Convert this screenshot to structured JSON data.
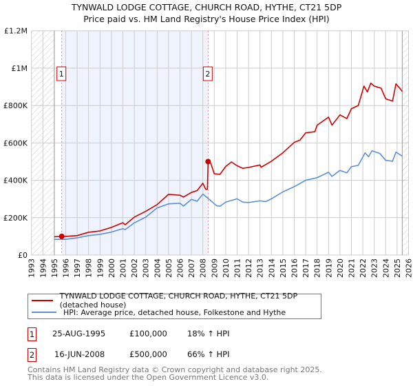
{
  "title": "TYNWALD LODGE COTTAGE, CHURCH ROAD, HYTHE, CT21 5DP",
  "subtitle": "Price paid vs. HM Land Registry's House Price Index (HPI)",
  "chart_data": {
    "type": "line",
    "xlim": [
      1993,
      2026
    ],
    "ylim": [
      0,
      1200000
    ],
    "yticks": [
      {
        "v": 0,
        "label": "£0"
      },
      {
        "v": 200000,
        "label": "£200K"
      },
      {
        "v": 400000,
        "label": "£400K"
      },
      {
        "v": 600000,
        "label": "£600K"
      },
      {
        "v": 800000,
        "label": "£800K"
      },
      {
        "v": 1000000,
        "label": "£1M"
      },
      {
        "v": 1200000,
        "label": "£1.2M"
      }
    ],
    "xticks": [
      "1993",
      "1994",
      "1995",
      "1996",
      "1997",
      "1998",
      "1999",
      "2000",
      "2001",
      "2002",
      "2003",
      "2004",
      "2005",
      "2006",
      "2007",
      "2008",
      "2009",
      "2010",
      "2011",
      "2012",
      "2013",
      "2014",
      "2015",
      "2016",
      "2017",
      "2018",
      "2019",
      "2020",
      "2021",
      "2022",
      "2023",
      "2024",
      "2025",
      "2026"
    ],
    "data_range": [
      1995,
      2025.45
    ],
    "grid": true,
    "series": [
      {
        "name": "TYNWALD LODGE COTTAGE, CHURCH ROAD, HYTHE, CT21 5DP (detached house)",
        "color": "#cc0000",
        "x": [
          1995.0,
          1995.65,
          1996,
          1997,
          1998,
          1999,
          2000,
          2001,
          2001.2,
          2002,
          2003,
          2004,
          2005,
          2006,
          2006.3,
          2007,
          2007.5,
          2008,
          2008.25,
          2008.4,
          2008.46,
          2008.7,
          2009,
          2009.5,
          2010,
          2010.5,
          2011,
          2011.5,
          2012,
          2013,
          2013.1,
          2014,
          2015,
          2016,
          2016.5,
          2017,
          2017.8,
          2018,
          2019,
          2019.3,
          2020,
          2020.6,
          2021,
          2021.6,
          2022.1,
          2022.4,
          2022.7,
          2023,
          2023.6,
          2024,
          2024.6,
          2024.9,
          2025.3,
          2025.45
        ],
        "y": [
          98000,
          100000,
          100000,
          104000,
          122000,
          129000,
          148000,
          173000,
          162000,
          203000,
          234000,
          270000,
          325000,
          320000,
          310000,
          335000,
          345000,
          384000,
          352000,
          352000,
          500000,
          490000,
          435000,
          432000,
          474000,
          498000,
          478000,
          464000,
          469000,
          482000,
          470000,
          502000,
          547000,
          603000,
          615000,
          654000,
          660000,
          695000,
          738000,
          695000,
          750000,
          730000,
          783000,
          800000,
          904000,
          873000,
          920000,
          904000,
          893000,
          836000,
          824000,
          916000,
          888000,
          875000
        ]
      },
      {
        "name": "HPI: Average price, detached house, Folkestone and Hythe",
        "color": "#5b8fd4",
        "x": [
          1995.0,
          1996,
          1997,
          1998,
          1999,
          2000,
          2001,
          2001.2,
          2002,
          2003,
          2004,
          2005,
          2006,
          2006.3,
          2007,
          2007.5,
          2008,
          2008.5,
          2009.2,
          2009.5,
          2010,
          2011,
          2011.5,
          2012,
          2013,
          2013.5,
          2014,
          2015,
          2016,
          2017,
          2018,
          2019,
          2019.3,
          2020,
          2020.6,
          2021,
          2021.6,
          2022.2,
          2022.5,
          2022.8,
          2023.5,
          2024,
          2024.6,
          2024.9,
          2025.45
        ],
        "y": [
          84000,
          84000,
          92000,
          104000,
          111000,
          123000,
          141000,
          136000,
          172000,
          203000,
          252000,
          274000,
          277000,
          262000,
          298000,
          288000,
          326000,
          301000,
          264000,
          261000,
          283000,
          301000,
          283000,
          281000,
          290000,
          286000,
          301000,
          338000,
          366000,
          400000,
          414000,
          443000,
          421000,
          453000,
          440000,
          473000,
          480000,
          547000,
          526000,
          558000,
          543000,
          507000,
          502000,
          551000,
          529000
        ]
      }
    ],
    "sales": [
      {
        "id": "1",
        "x": 1995.65,
        "y": 100000
      },
      {
        "id": "2",
        "x": 2008.46,
        "y": 500000
      }
    ]
  },
  "legend": [
    {
      "label": "TYNWALD LODGE COTTAGE, CHURCH ROAD, HYTHE, CT21 5DP (detached house)",
      "color": "#cc0000"
    },
    {
      "label": "HPI: Average price, detached house, Folkestone and Hythe",
      "color": "#5b8fd4"
    }
  ],
  "transactions": [
    {
      "id": "1",
      "date": "25-AUG-1995",
      "price": "£100,000",
      "hpi": "18% ↑ HPI"
    },
    {
      "id": "2",
      "date": "16-JUN-2008",
      "price": "£500,000",
      "hpi": "66% ↑ HPI"
    }
  ],
  "footer": [
    "Contains HM Land Registry data © Crown copyright and database right 2025.",
    "This data is licensed under the Open Government Licence v3.0."
  ]
}
